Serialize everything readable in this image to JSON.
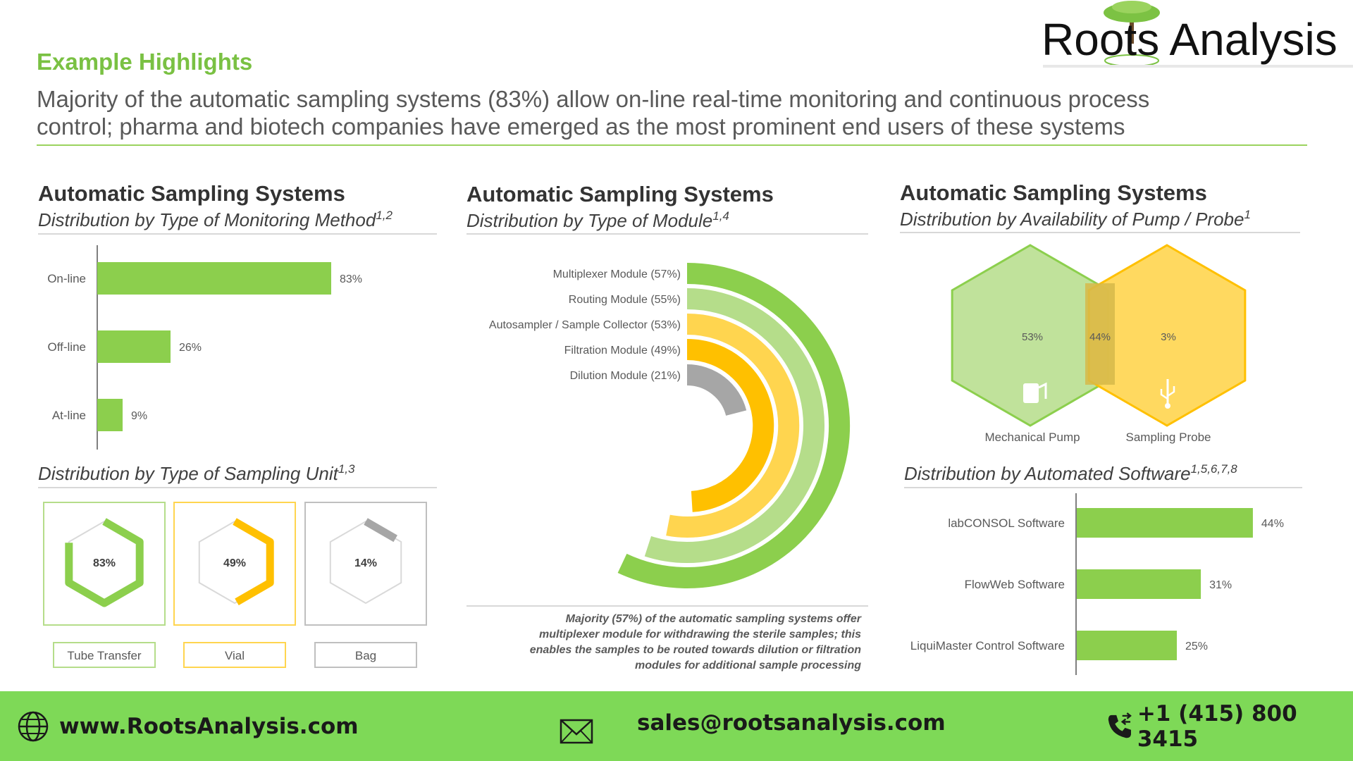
{
  "brand": {
    "logo_text": "Roots Analysis",
    "colors": {
      "green": "#8ccf4d",
      "light_green": "#b5dd8a",
      "yellow": "#ffd54f",
      "gold": "#ffc000",
      "gray": "#a6a6a6",
      "footer": "#7ed957"
    }
  },
  "header": {
    "title": "Example Highlights",
    "summary_line1": "Majority of the automatic sampling systems (83%) allow on-line real-time monitoring and continuous process",
    "summary_line2": "control; pharma and biotech companies have emerged as the most prominent end users of these systems"
  },
  "panels": {
    "left_title": "Automatic Sampling Systems",
    "left_subtitle": "Distribution by Type of Monitoring Method",
    "left_sup": "1,2",
    "unit_subtitle": "Distribution by Type of Sampling Unit",
    "unit_sup": "1,3",
    "middle_title": "Automatic Sampling Systems",
    "middle_subtitle": "Distribution by Type of Module",
    "middle_sup": "1,4",
    "middle_note": [
      "Majority (57%) of the automatic sampling systems offer",
      "multiplexer module for withdrawing the sterile samples; this",
      "enables the samples to be routed towards dilution or filtration",
      "modules for additional sample processing"
    ],
    "right_title": "Automatic Sampling Systems",
    "right_subtitle": "Distribution by Availability of Pump / Probe",
    "right_sup": "1",
    "software_subtitle": "Distribution by Automated Software",
    "software_sup": "1,5,6,7,8"
  },
  "chart_data": [
    {
      "type": "bar",
      "orientation": "horizontal",
      "categories": [
        "On-line",
        "Off-line",
        "At-line"
      ],
      "values": [
        83,
        26,
        9
      ],
      "labels": [
        "83%",
        "26%",
        "9%"
      ]
    },
    {
      "type": "hexagon-progress",
      "categories": [
        "Tube Transfer",
        "Vial",
        "Bag"
      ],
      "values": [
        83,
        49,
        14
      ],
      "labels": [
        "83%",
        "49%",
        "14%"
      ]
    },
    {
      "type": "radial-bar",
      "categories": [
        "Multiplexer Module (57%)",
        "Routing Module (55%)",
        "Autosampler / Sample Collector (53%)",
        "Filtration Module (49%)",
        "Dilution Module (21%)"
      ],
      "values": [
        57,
        55,
        53,
        49,
        21
      ]
    },
    {
      "type": "venn",
      "sets": [
        "Mechanical Pump",
        "Sampling Probe"
      ],
      "values": [
        53,
        44,
        3
      ],
      "labels": [
        "53%",
        "44%",
        "3%"
      ]
    },
    {
      "type": "bar",
      "orientation": "horizontal",
      "categories": [
        "labCONSOL Software",
        "FlowWeb Software",
        "LiquiMaster Control Software"
      ],
      "values": [
        44,
        31,
        25
      ],
      "labels": [
        "44%",
        "31%",
        "25%"
      ]
    }
  ],
  "footer": {
    "website": "www.RootsAnalysis.com",
    "email": "sales@rootsanalysis.com",
    "phone": "+1 (415) 800 3415"
  }
}
